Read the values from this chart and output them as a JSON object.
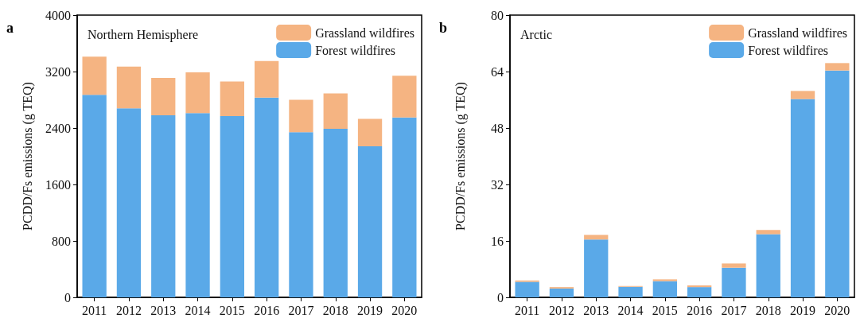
{
  "chart_data": [
    {
      "type": "bar",
      "title": "Northern Hemisphere",
      "annotations": [
        "a"
      ],
      "ylabel": "PCDD/Fs emissions (g TEQ)",
      "categories": [
        "2011",
        "2012",
        "2013",
        "2014",
        "2015",
        "2016",
        "2017",
        "2018",
        "2019",
        "2020"
      ],
      "stacked": true,
      "ylim": [
        0,
        4000
      ],
      "yticks": [
        0,
        800,
        1600,
        2400,
        3200,
        4000
      ],
      "legend": "top right",
      "grid": false,
      "series": [
        {
          "name": "Forest wildfires",
          "color": "#5aa9e8",
          "values": [
            2870,
            2680,
            2580,
            2610,
            2570,
            2830,
            2340,
            2390,
            2140,
            2550
          ]
        },
        {
          "name": "Grassland wildfires",
          "color": "#f5b482",
          "values": [
            540,
            590,
            530,
            580,
            490,
            520,
            460,
            500,
            390,
            590
          ]
        }
      ]
    },
    {
      "type": "bar",
      "title": "Arctic",
      "annotations": [
        "b"
      ],
      "ylabel": "PCDD/Fs emissions (g TEQ)",
      "categories": [
        "2011",
        "2012",
        "2013",
        "2014",
        "2015",
        "2016",
        "2017",
        "2018",
        "2019",
        "2020"
      ],
      "stacked": true,
      "ylim": [
        0,
        80
      ],
      "yticks": [
        0,
        16,
        32,
        48,
        64,
        80
      ],
      "legend": "top right",
      "grid": false,
      "series": [
        {
          "name": "Forest wildfires",
          "color": "#5aa9e8",
          "values": [
            4.4,
            2.5,
            16.4,
            3.0,
            4.6,
            2.9,
            8.4,
            17.9,
            56.2,
            64.3
          ]
        },
        {
          "name": "Grassland wildfires",
          "color": "#f5b482",
          "values": [
            0.4,
            0.4,
            1.3,
            0.2,
            0.5,
            0.5,
            1.2,
            1.2,
            2.3,
            2.1
          ]
        }
      ]
    }
  ]
}
